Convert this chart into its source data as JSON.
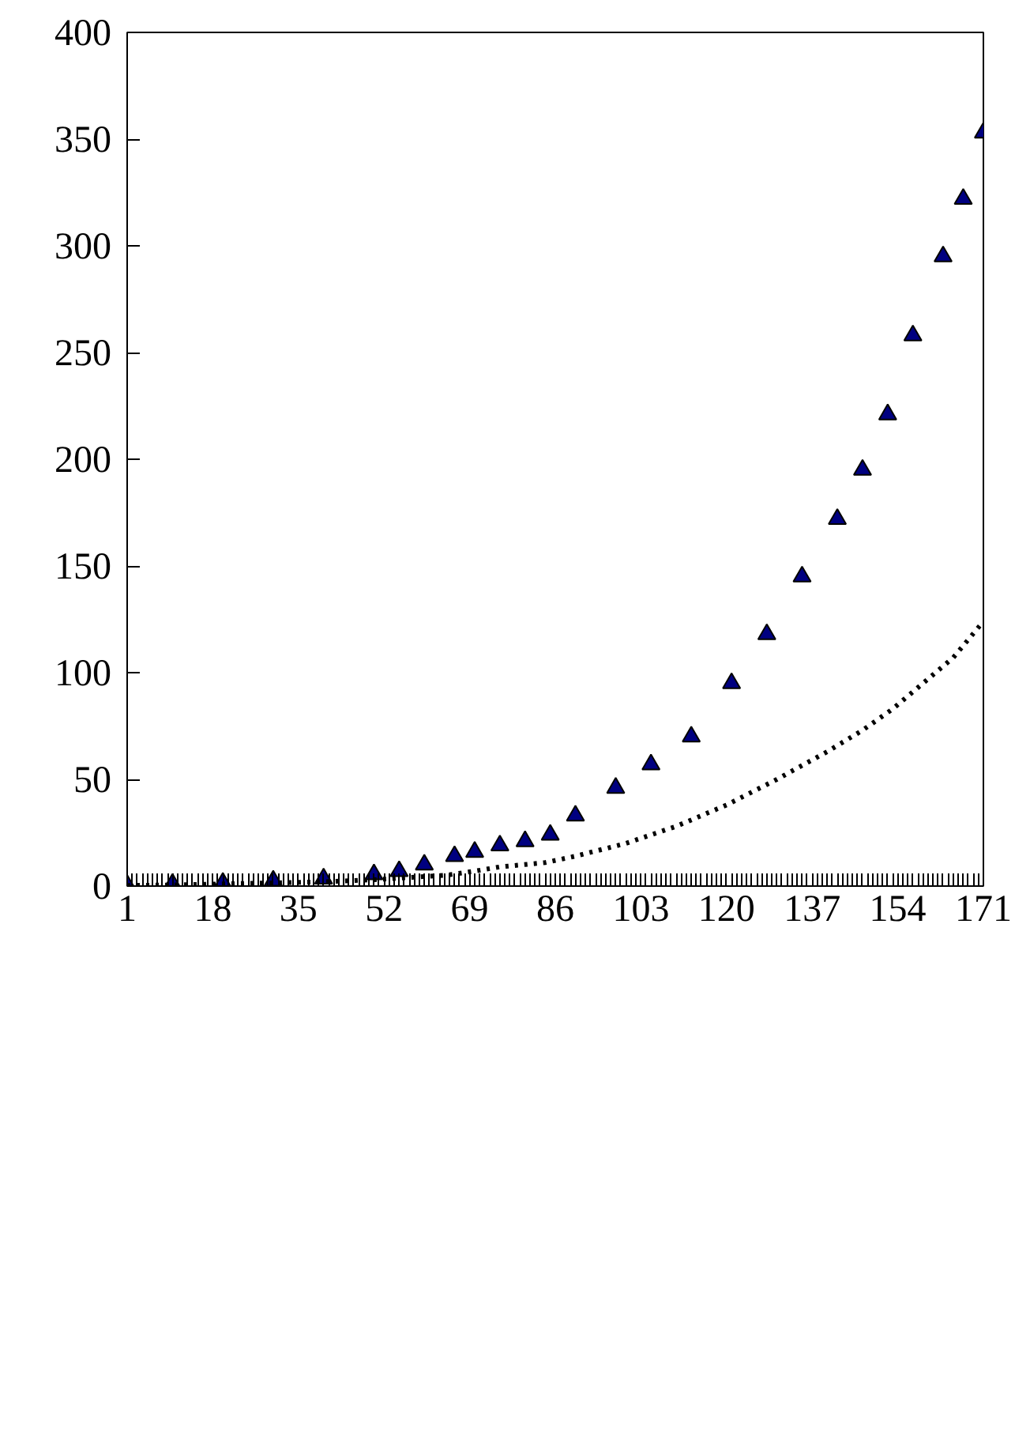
{
  "chart_data": {
    "type": "line",
    "xlim": [
      1,
      171
    ],
    "xticks": [
      1,
      18,
      35,
      52,
      69,
      86,
      103,
      120,
      137,
      154,
      171
    ],
    "ylim": [
      0,
      400
    ],
    "yticks": [
      0,
      50,
      100,
      150,
      200,
      250,
      300,
      350,
      400
    ],
    "grid": false,
    "series": [
      {
        "type": "scatter",
        "marker": "triangle",
        "color": "#000080",
        "x": [
          1,
          10,
          20,
          30,
          40,
          50,
          55,
          60,
          66,
          70,
          75,
          80,
          85,
          90,
          98,
          105,
          113,
          121,
          128,
          135,
          142,
          147,
          152,
          157,
          163,
          167,
          171
        ],
        "values": [
          0.5,
          1,
          1.5,
          2.5,
          3.5,
          5.5,
          7,
          10,
          14,
          16,
          19,
          21,
          24,
          33,
          46,
          57,
          70,
          95,
          118,
          145,
          172,
          195,
          221,
          258,
          295,
          322,
          353
        ]
      },
      {
        "line_style": "dotted",
        "color": "#000000",
        "x": [
          1,
          10,
          20,
          30,
          40,
          50,
          60,
          64,
          70,
          75,
          84,
          90,
          100,
          110,
          120,
          130,
          140,
          147,
          153,
          160,
          165,
          171
        ],
        "values": [
          0.3,
          0.5,
          1,
          1.5,
          2,
          3,
          4.5,
          5,
          7,
          9,
          11,
          14,
          20,
          28,
          38,
          50,
          63,
          73,
          83,
          97,
          107,
          124
        ]
      }
    ]
  }
}
